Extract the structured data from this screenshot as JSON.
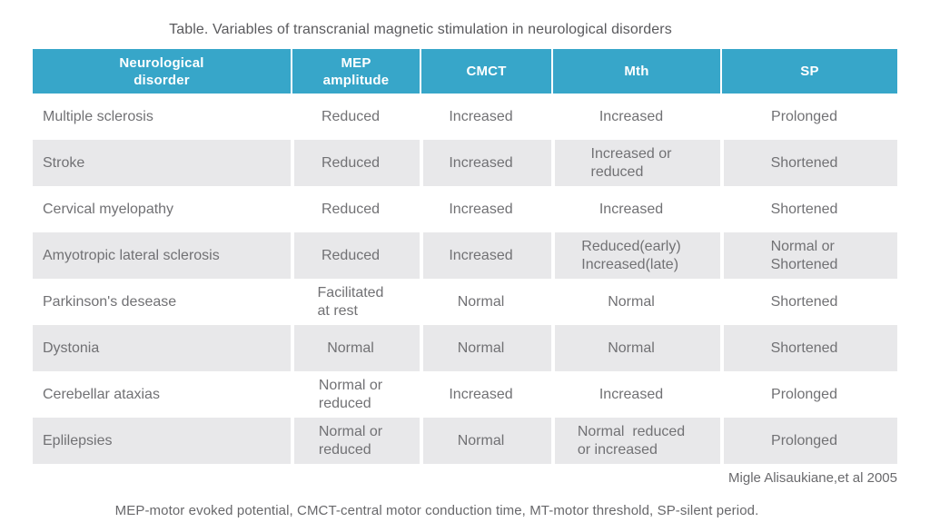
{
  "page": {
    "title": "Table. Variables of transcranial magnetic stimulation in neurological disorders",
    "source": "Migle Alisaukiane,et al 2005",
    "footnote": "MEP-motor evoked potential, CMCT-central motor conduction time, MT-motor threshold, SP-silent period."
  },
  "colors": {
    "header_bg": "#37a6c9",
    "header_text": "#ffffff",
    "alt_row_bg": "#e8e8ea",
    "body_text": "#717174",
    "title_text": "#5a5a5d"
  },
  "table": {
    "headers": [
      "Neurological\ndisorder",
      "MEP\namplitude",
      "CMCT",
      "Mth",
      "SP"
    ],
    "rows": [
      {
        "cells": [
          "Multiple sclerosis",
          "Reduced",
          "Increased",
          "Increased",
          "Prolonged"
        ]
      },
      {
        "cells": [
          "Stroke",
          "Reduced",
          "Increased",
          "Increased or\nreduced",
          "Shortened"
        ]
      },
      {
        "cells": [
          "Cervical myelopathy",
          "Reduced",
          "Increased",
          "Increased",
          "Shortened"
        ]
      },
      {
        "cells": [
          "Amyotropic lateral sclerosis",
          "Reduced",
          "Increased",
          "Reduced(early)\nIncreased(late)",
          "Normal or\nShortened"
        ]
      },
      {
        "cells": [
          "Parkinson's desease",
          "Facilitated\nat rest",
          "Normal",
          "Normal",
          "Shortened"
        ]
      },
      {
        "cells": [
          "Dystonia",
          "Normal",
          "Normal",
          "Normal",
          "Shortened"
        ]
      },
      {
        "cells": [
          "Cerebellar ataxias",
          "Normal or\nreduced",
          "Increased",
          "Increased",
          "Prolonged"
        ]
      },
      {
        "cells": [
          "Eplilepsies",
          "Normal or\nreduced",
          "Normal",
          "Normal  reduced\nor increased",
          "Prolonged"
        ]
      }
    ]
  },
  "chart_data": {
    "type": "table",
    "title": "Table. Variables of transcranial magnetic stimulation in neurological disorders",
    "columns": [
      "Neurological disorder",
      "MEP amplitude",
      "CMCT",
      "Mth",
      "SP"
    ],
    "rows": [
      [
        "Multiple sclerosis",
        "Reduced",
        "Increased",
        "Increased",
        "Prolonged"
      ],
      [
        "Stroke",
        "Reduced",
        "Increased",
        "Increased or reduced",
        "Shortened"
      ],
      [
        "Cervical myelopathy",
        "Reduced",
        "Increased",
        "Increased",
        "Shortened"
      ],
      [
        "Amyotropic lateral sclerosis",
        "Reduced",
        "Increased",
        "Reduced(early) Increased(late)",
        "Normal or Shortened"
      ],
      [
        "Parkinson's desease",
        "Facilitated at rest",
        "Normal",
        "Normal",
        "Shortened"
      ],
      [
        "Dystonia",
        "Normal",
        "Normal",
        "Normal",
        "Shortened"
      ],
      [
        "Cerebellar ataxias",
        "Normal or reduced",
        "Increased",
        "Increased",
        "Prolonged"
      ],
      [
        "Eplilepsies",
        "Normal or reduced",
        "Normal",
        "Normal reduced or increased",
        "Prolonged"
      ]
    ],
    "source": "Migle Alisaukiane,et al 2005",
    "footnote": "MEP-motor evoked potential, CMCT-central motor conduction time, MT-motor threshold, SP-silent period."
  }
}
